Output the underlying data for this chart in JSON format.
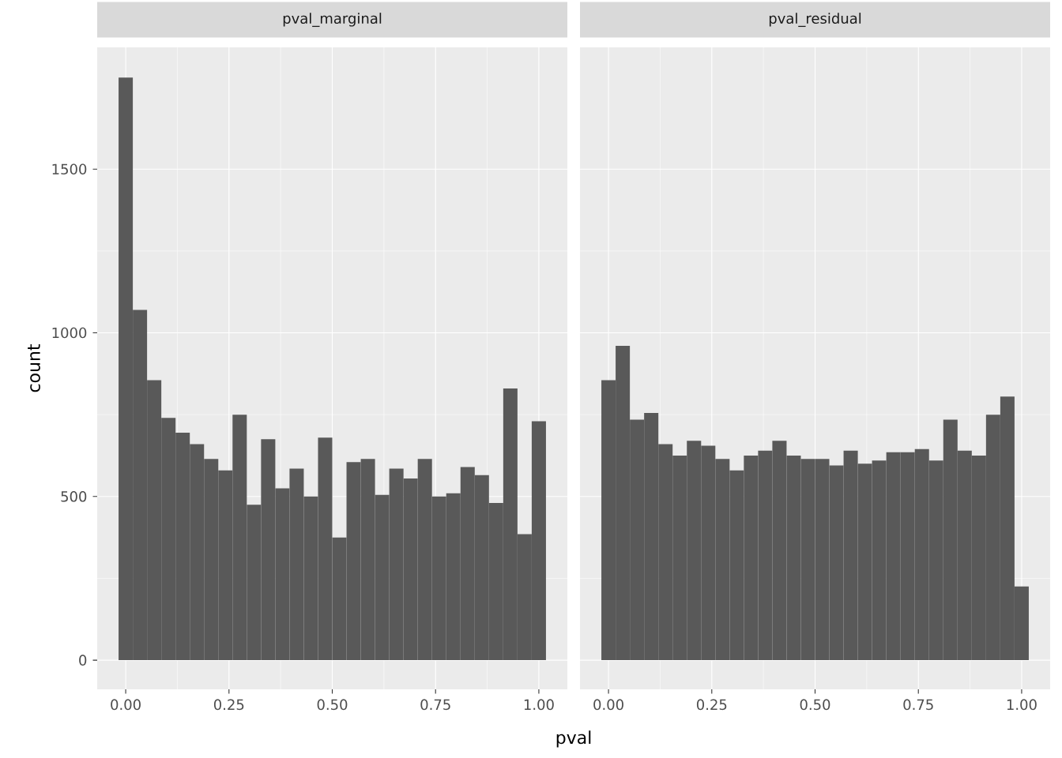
{
  "chart_data": [
    {
      "type": "histogram",
      "title": "pval_marginal",
      "xlabel": "pval",
      "ylabel": "count",
      "color": "#595959",
      "grid": true,
      "bins": [
        -0.01724,
        0.01724,
        0.05172,
        0.08621,
        0.12069,
        0.15517,
        0.18966,
        0.22414,
        0.25862,
        0.2931,
        0.32759,
        0.36207,
        0.39655,
        0.43103,
        0.46552,
        0.5,
        0.53448,
        0.56897,
        0.60345,
        0.63793,
        0.67241,
        0.7069,
        0.74138,
        0.77586,
        0.81034,
        0.84483,
        0.87931,
        0.91379,
        0.94828,
        0.98276,
        1.01724
      ],
      "values": [
        1780,
        1070,
        855,
        740,
        695,
        660,
        615,
        580,
        750,
        475,
        675,
        525,
        585,
        500,
        680,
        375,
        605,
        615,
        505,
        585,
        555,
        615,
        500,
        510,
        590,
        565,
        480,
        830,
        385,
        730
      ],
      "xlim": [
        -0.069,
        1.069
      ],
      "ylim": [
        -89,
        1872
      ],
      "xticks": [
        {
          "value": 0,
          "label": "0.00"
        },
        {
          "value": 0.25,
          "label": "0.25"
        },
        {
          "value": 0.5,
          "label": "0.50"
        },
        {
          "value": 0.75,
          "label": "0.75"
        },
        {
          "value": 1,
          "label": "1.00"
        }
      ],
      "yticks": [
        0,
        500,
        1000,
        1500
      ]
    },
    {
      "type": "histogram",
      "title": "pval_residual",
      "color": "#595959",
      "grid": true,
      "tick_labels": "x",
      "bins": [
        -0.01724,
        0.01724,
        0.05172,
        0.08621,
        0.12069,
        0.15517,
        0.18966,
        0.22414,
        0.25862,
        0.2931,
        0.32759,
        0.36207,
        0.39655,
        0.43103,
        0.46552,
        0.5,
        0.53448,
        0.56897,
        0.60345,
        0.63793,
        0.67241,
        0.7069,
        0.74138,
        0.77586,
        0.81034,
        0.84483,
        0.87931,
        0.91379,
        0.94828,
        0.98276,
        1.01724
      ],
      "values": [
        855,
        960,
        735,
        755,
        660,
        625,
        670,
        655,
        615,
        580,
        625,
        640,
        670,
        625,
        615,
        615,
        595,
        640,
        600,
        610,
        635,
        635,
        645,
        610,
        735,
        640,
        625,
        750,
        805,
        225
      ],
      "xlim": [
        -0.069,
        1.069
      ],
      "ylim": [
        -89,
        1872
      ],
      "xticks": [
        {
          "value": 0,
          "label": "0.00"
        },
        {
          "value": 0.25,
          "label": "0.25"
        },
        {
          "value": 0.5,
          "label": "0.50"
        },
        {
          "value": 0.75,
          "label": "0.75"
        },
        {
          "value": 1,
          "label": "1.00"
        }
      ],
      "yticks": [
        0,
        500,
        1000,
        1500
      ]
    }
  ]
}
